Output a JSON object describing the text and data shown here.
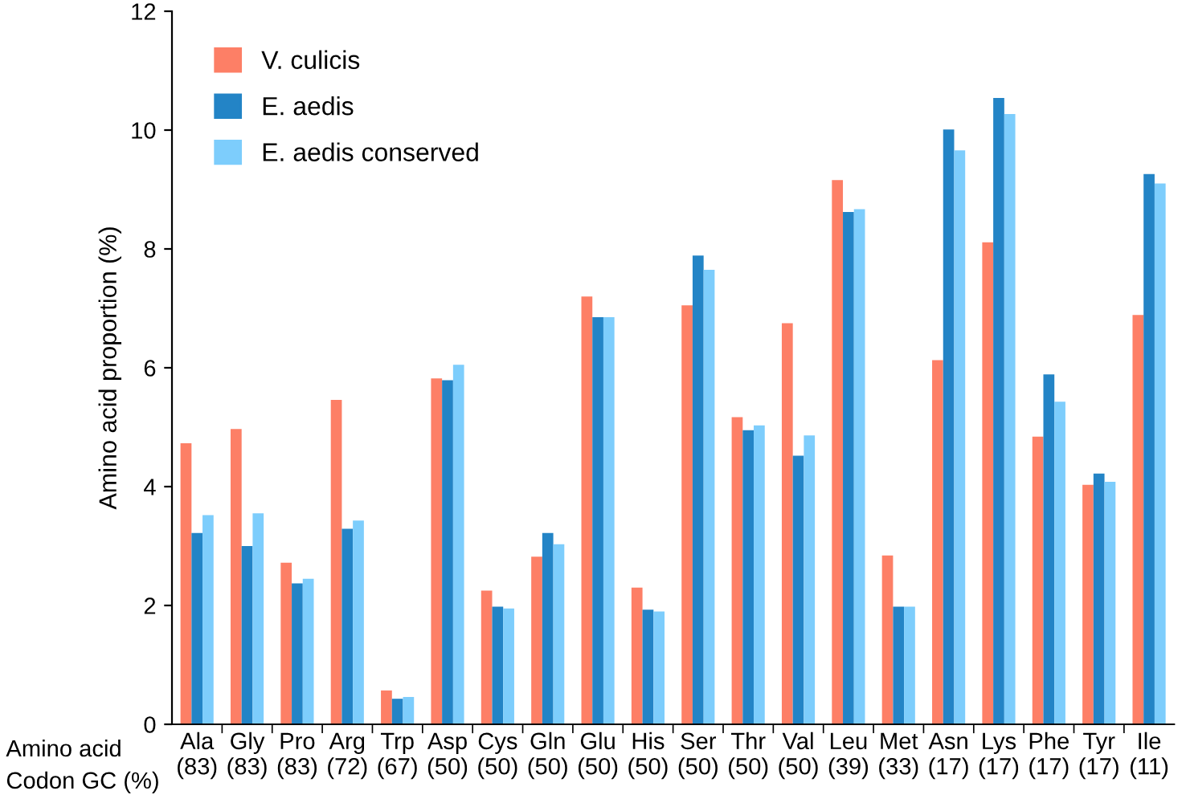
{
  "chart_data": {
    "type": "bar",
    "ylabel": "Amino acid proportion (%)",
    "categories": [
      "Ala\n(83)",
      "Gly\n(83)",
      "Pro\n(83)",
      "Arg\n(72)",
      "Trp\n(67)",
      "Asp\n(50)",
      "Cys\n(50)",
      "Gln\n(50)",
      "Glu\n(50)",
      "His\n(50)",
      "Ser\n(50)",
      "Thr\n(50)",
      "Val\n(50)",
      "Leu\n(39)",
      "Met\n(33)",
      "Asn\n(17)",
      "Lys\n(17)",
      "Phe\n(17)",
      "Tyr\n(17)",
      "Ile\n(11)"
    ],
    "series": [
      {
        "name": "V. culicis",
        "color": "#fd7f66",
        "values": [
          4.73,
          4.97,
          2.72,
          5.46,
          0.57,
          5.82,
          2.25,
          2.82,
          7.2,
          2.3,
          7.05,
          5.17,
          6.75,
          9.16,
          2.84,
          6.13,
          8.11,
          4.84,
          4.03,
          6.89
        ]
      },
      {
        "name": "E. aedis",
        "color": "#2384c6",
        "values": [
          3.22,
          3.0,
          2.37,
          3.29,
          0.43,
          5.79,
          1.98,
          3.22,
          6.85,
          1.93,
          7.89,
          4.95,
          4.52,
          8.62,
          1.98,
          10.01,
          10.54,
          5.89,
          4.22,
          9.26
        ]
      },
      {
        "name": "E. aedis conserved",
        "color": "#7dcdfc",
        "values": [
          3.52,
          3.55,
          2.45,
          3.43,
          0.46,
          6.05,
          1.95,
          3.03,
          6.85,
          1.9,
          7.65,
          5.03,
          4.86,
          8.67,
          1.98,
          9.66,
          10.27,
          5.43,
          4.08,
          9.1
        ]
      }
    ],
    "ylim": [
      0,
      12
    ],
    "yticks": [
      0,
      2,
      4,
      6,
      8,
      10,
      12
    ],
    "grid": false,
    "legend": "top left",
    "annotations": [
      "Amino acid\nCodon GC (%)"
    ]
  }
}
